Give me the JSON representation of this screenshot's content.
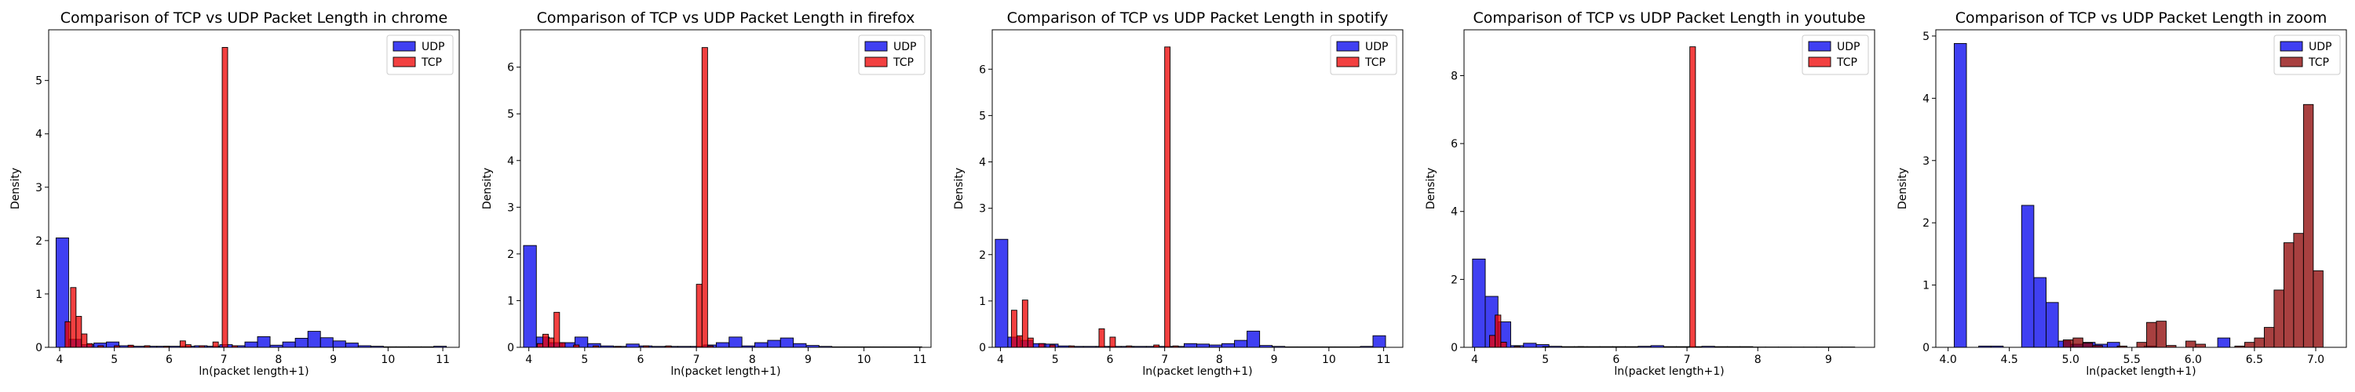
{
  "chart_data": [
    {
      "type": "bar",
      "title": "Comparison of TCP vs UDP Packet Length in chrome",
      "xlabel": "ln(packet length+1)",
      "ylabel": "Density",
      "xlim": [
        3.8,
        11.3
      ],
      "ylim": [
        0,
        5.95
      ],
      "xticks": [
        "4",
        "5",
        "6",
        "7",
        "8",
        "9",
        "10",
        "11"
      ],
      "yticks": [
        "0",
        "1",
        "2",
        "3",
        "4",
        "5"
      ],
      "legend": {
        "placement": "top-right",
        "entries": [
          "UDP",
          "TCP"
        ]
      },
      "colors": {
        "UDP": "#0000ee",
        "TCP": "#ee0000"
      },
      "series": [
        {
          "name": "UDP",
          "bin_width": 0.23,
          "bins": [
            [
              4.05,
              2.05
            ],
            [
              4.28,
              0.15
            ],
            [
              4.51,
              0.05
            ],
            [
              4.74,
              0.08
            ],
            [
              4.97,
              0.1
            ],
            [
              5.2,
              0.03
            ],
            [
              5.43,
              0.02
            ],
            [
              5.66,
              0.02
            ],
            [
              5.89,
              0.02
            ],
            [
              6.12,
              0.02
            ],
            [
              6.35,
              0.02
            ],
            [
              6.58,
              0.03
            ],
            [
              6.81,
              0.02
            ],
            [
              7.04,
              0.05
            ],
            [
              7.27,
              0.03
            ],
            [
              7.5,
              0.1
            ],
            [
              7.73,
              0.2
            ],
            [
              7.96,
              0.04
            ],
            [
              8.19,
              0.1
            ],
            [
              8.42,
              0.17
            ],
            [
              8.65,
              0.3
            ],
            [
              8.88,
              0.18
            ],
            [
              9.11,
              0.12
            ],
            [
              9.34,
              0.08
            ],
            [
              9.57,
              0.03
            ],
            [
              9.8,
              0.02
            ],
            [
              10.03,
              0.01
            ],
            [
              10.26,
              0.01
            ],
            [
              10.49,
              0.01
            ],
            [
              10.72,
              0.01
            ],
            [
              10.95,
              0.02
            ]
          ]
        },
        {
          "name": "TCP",
          "bin_width": 0.1,
          "bins": [
            [
              4.15,
              0.48
            ],
            [
              4.25,
              1.12
            ],
            [
              4.35,
              0.58
            ],
            [
              4.45,
              0.25
            ],
            [
              4.55,
              0.07
            ],
            [
              4.75,
              0.03
            ],
            [
              5.05,
              0.03
            ],
            [
              5.3,
              0.04
            ],
            [
              5.6,
              0.03
            ],
            [
              5.95,
              0.02
            ],
            [
              6.25,
              0.12
            ],
            [
              6.35,
              0.05
            ],
            [
              6.6,
              0.03
            ],
            [
              6.85,
              0.1
            ],
            [
              7.02,
              5.62
            ],
            [
              7.2,
              0.03
            ]
          ]
        }
      ]
    },
    {
      "type": "bar",
      "title": "Comparison of TCP vs UDP Packet Length in firefox",
      "xlabel": "ln(packet length+1)",
      "ylabel": "Density",
      "xlim": [
        3.85,
        11.2
      ],
      "ylim": [
        0,
        6.8
      ],
      "xticks": [
        "4",
        "5",
        "6",
        "7",
        "8",
        "9",
        "10",
        "11"
      ],
      "yticks": [
        "0",
        "1",
        "2",
        "3",
        "4",
        "5",
        "6"
      ],
      "legend": {
        "placement": "top-right",
        "entries": [
          "UDP",
          "TCP"
        ]
      },
      "colors": {
        "UDP": "#0000ee",
        "TCP": "#ee0000"
      },
      "series": [
        {
          "name": "UDP",
          "bin_width": 0.23,
          "bins": [
            [
              4.02,
              2.18
            ],
            [
              4.25,
              0.22
            ],
            [
              4.48,
              0.1
            ],
            [
              4.71,
              0.1
            ],
            [
              4.94,
              0.22
            ],
            [
              5.17,
              0.08
            ],
            [
              5.4,
              0.03
            ],
            [
              5.63,
              0.02
            ],
            [
              5.86,
              0.07
            ],
            [
              6.09,
              0.03
            ],
            [
              6.32,
              0.02
            ],
            [
              6.55,
              0.02
            ],
            [
              6.78,
              0.02
            ],
            [
              7.01,
              0.02
            ],
            [
              7.24,
              0.05
            ],
            [
              7.47,
              0.1
            ],
            [
              7.7,
              0.22
            ],
            [
              7.93,
              0.03
            ],
            [
              8.16,
              0.1
            ],
            [
              8.39,
              0.15
            ],
            [
              8.62,
              0.2
            ],
            [
              8.85,
              0.08
            ],
            [
              9.08,
              0.04
            ],
            [
              9.31,
              0.02
            ],
            [
              9.54,
              0.01
            ],
            [
              9.77,
              0.01
            ],
            [
              10.0,
              0.01
            ],
            [
              10.23,
              0.01
            ],
            [
              10.46,
              0.01
            ],
            [
              10.69,
              0.01
            ],
            [
              10.92,
              0.01
            ]
          ]
        },
        {
          "name": "TCP",
          "bin_width": 0.1,
          "bins": [
            [
              4.2,
              0.08
            ],
            [
              4.3,
              0.28
            ],
            [
              4.4,
              0.2
            ],
            [
              4.5,
              0.75
            ],
            [
              4.6,
              0.1
            ],
            [
              4.85,
              0.05
            ],
            [
              5.2,
              0.03
            ],
            [
              5.6,
              0.02
            ],
            [
              6.1,
              0.03
            ],
            [
              6.5,
              0.03
            ],
            [
              7.05,
              1.35
            ],
            [
              7.15,
              6.42
            ],
            [
              7.25,
              0.03
            ]
          ]
        }
      ]
    },
    {
      "type": "bar",
      "title": "Comparison of TCP vs UDP Packet Length in spotify",
      "xlabel": "ln(packet length+1)",
      "ylabel": "Density",
      "xlim": [
        3.85,
        11.35
      ],
      "ylim": [
        0,
        6.85
      ],
      "xticks": [
        "4",
        "5",
        "6",
        "7",
        "8",
        "9",
        "10",
        "11"
      ],
      "yticks": [
        "0",
        "1",
        "2",
        "3",
        "4",
        "5",
        "6"
      ],
      "legend": {
        "placement": "top-right",
        "entries": [
          "UDP",
          "TCP"
        ]
      },
      "colors": {
        "UDP": "#0000ee",
        "TCP": "#ee0000"
      },
      "series": [
        {
          "name": "UDP",
          "bin_width": 0.23,
          "bins": [
            [
              4.02,
              2.33
            ],
            [
              4.25,
              0.22
            ],
            [
              4.48,
              0.15
            ],
            [
              4.71,
              0.08
            ],
            [
              4.94,
              0.07
            ],
            [
              5.17,
              0.03
            ],
            [
              5.4,
              0.02
            ],
            [
              5.63,
              0.02
            ],
            [
              5.86,
              0.02
            ],
            [
              6.09,
              0.02
            ],
            [
              6.32,
              0.02
            ],
            [
              6.55,
              0.02
            ],
            [
              6.78,
              0.02
            ],
            [
              7.01,
              0.02
            ],
            [
              7.24,
              0.02
            ],
            [
              7.47,
              0.08
            ],
            [
              7.7,
              0.07
            ],
            [
              7.93,
              0.05
            ],
            [
              8.16,
              0.08
            ],
            [
              8.39,
              0.15
            ],
            [
              8.62,
              0.35
            ],
            [
              8.85,
              0.04
            ],
            [
              9.08,
              0.02
            ],
            [
              9.31,
              0.01
            ],
            [
              9.54,
              0.01
            ],
            [
              9.77,
              0.01
            ],
            [
              10.0,
              0.01
            ],
            [
              10.23,
              0.01
            ],
            [
              10.46,
              0.01
            ],
            [
              10.69,
              0.02
            ],
            [
              10.92,
              0.25
            ]
          ]
        },
        {
          "name": "TCP",
          "bin_width": 0.1,
          "bins": [
            [
              4.25,
              0.8
            ],
            [
              4.35,
              0.25
            ],
            [
              4.45,
              1.02
            ],
            [
              4.55,
              0.2
            ],
            [
              4.75,
              0.08
            ],
            [
              4.95,
              0.05
            ],
            [
              5.3,
              0.03
            ],
            [
              5.85,
              0.4
            ],
            [
              6.05,
              0.22
            ],
            [
              6.35,
              0.03
            ],
            [
              6.85,
              0.05
            ],
            [
              7.05,
              6.48
            ],
            [
              7.2,
              0.03
            ]
          ]
        }
      ]
    },
    {
      "type": "bar",
      "title": "Comparison of TCP vs UDP Packet Length in youtube",
      "xlabel": "ln(packet length+1)",
      "ylabel": "Density",
      "xlim": [
        3.85,
        9.65
      ],
      "ylim": [
        0,
        9.35
      ],
      "xticks": [
        "4",
        "5",
        "6",
        "7",
        "8",
        "9"
      ],
      "yticks": [
        "0",
        "2",
        "4",
        "6",
        "8"
      ],
      "legend": {
        "placement": "top-right",
        "entries": [
          "UDP",
          "TCP"
        ]
      },
      "colors": {
        "UDP": "#0000ee",
        "TCP": "#ee0000"
      },
      "series": [
        {
          "name": "UDP",
          "bin_width": 0.18,
          "bins": [
            [
              4.06,
              2.6
            ],
            [
              4.24,
              1.5
            ],
            [
              4.42,
              0.75
            ],
            [
              4.6,
              0.05
            ],
            [
              4.78,
              0.12
            ],
            [
              4.96,
              0.08
            ],
            [
              5.14,
              0.03
            ],
            [
              5.32,
              0.02
            ],
            [
              5.5,
              0.02
            ],
            [
              5.68,
              0.02
            ],
            [
              5.86,
              0.02
            ],
            [
              6.04,
              0.02
            ],
            [
              6.22,
              0.02
            ],
            [
              6.4,
              0.03
            ],
            [
              6.58,
              0.05
            ],
            [
              6.76,
              0.02
            ],
            [
              6.94,
              0.02
            ],
            [
              7.12,
              0.02
            ],
            [
              7.3,
              0.03
            ],
            [
              7.48,
              0.02
            ],
            [
              7.66,
              0.02
            ],
            [
              7.84,
              0.02
            ],
            [
              8.02,
              0.01
            ],
            [
              8.2,
              0.01
            ],
            [
              8.38,
              0.01
            ],
            [
              8.56,
              0.01
            ],
            [
              8.74,
              0.01
            ],
            [
              8.92,
              0.01
            ],
            [
              9.1,
              0.01
            ],
            [
              9.28,
              0.01
            ]
          ]
        },
        {
          "name": "TCP",
          "bin_width": 0.08,
          "bins": [
            [
              4.25,
              0.35
            ],
            [
              4.33,
              0.95
            ],
            [
              4.41,
              0.15
            ],
            [
              4.6,
              0.03
            ],
            [
              5.0,
              0.02
            ],
            [
              5.5,
              0.02
            ],
            [
              7.08,
              8.85
            ]
          ]
        }
      ]
    },
    {
      "type": "bar",
      "title": "Comparison of TCP vs UDP Packet Length in zoom",
      "xlabel": "ln(packet length+1)",
      "ylabel": "Density",
      "xlim": [
        3.9,
        7.25
      ],
      "ylim": [
        0,
        5.1
      ],
      "xticks": [
        "4.0",
        "4.5",
        "5.0",
        "5.5",
        "6.0",
        "6.5",
        "7.0"
      ],
      "yticks": [
        "0",
        "1",
        "2",
        "3",
        "4",
        "5"
      ],
      "legend": {
        "placement": "top-right",
        "entries": [
          "UDP",
          "TCP"
        ]
      },
      "colors": {
        "UDP": "#0000ee",
        "TCP": "#8b0000"
      },
      "series": [
        {
          "name": "UDP",
          "bin_width": 0.1,
          "bins": [
            [
              4.1,
              4.88
            ],
            [
              4.3,
              0.02
            ],
            [
              4.4,
              0.02
            ],
            [
              4.65,
              2.28
            ],
            [
              4.75,
              1.12
            ],
            [
              4.85,
              0.72
            ],
            [
              4.95,
              0.1
            ],
            [
              5.05,
              0.05
            ],
            [
              5.15,
              0.08
            ],
            [
              5.25,
              0.05
            ],
            [
              5.35,
              0.08
            ],
            [
              5.65,
              0.02
            ],
            [
              6.25,
              0.15
            ]
          ]
        },
        {
          "name": "TCP",
          "bin_width": 0.08,
          "bins": [
            [
              4.98,
              0.12
            ],
            [
              5.06,
              0.15
            ],
            [
              5.14,
              0.07
            ],
            [
              5.22,
              0.03
            ],
            [
              5.42,
              0.02
            ],
            [
              5.58,
              0.08
            ],
            [
              5.66,
              0.4
            ],
            [
              5.74,
              0.42
            ],
            [
              5.82,
              0.03
            ],
            [
              5.98,
              0.1
            ],
            [
              6.06,
              0.05
            ],
            [
              6.38,
              0.02
            ],
            [
              6.46,
              0.08
            ],
            [
              6.54,
              0.15
            ],
            [
              6.62,
              0.32
            ],
            [
              6.7,
              0.92
            ],
            [
              6.78,
              1.68
            ],
            [
              6.86,
              1.83
            ],
            [
              6.94,
              3.9
            ],
            [
              7.02,
              1.23
            ]
          ]
        }
      ]
    }
  ]
}
